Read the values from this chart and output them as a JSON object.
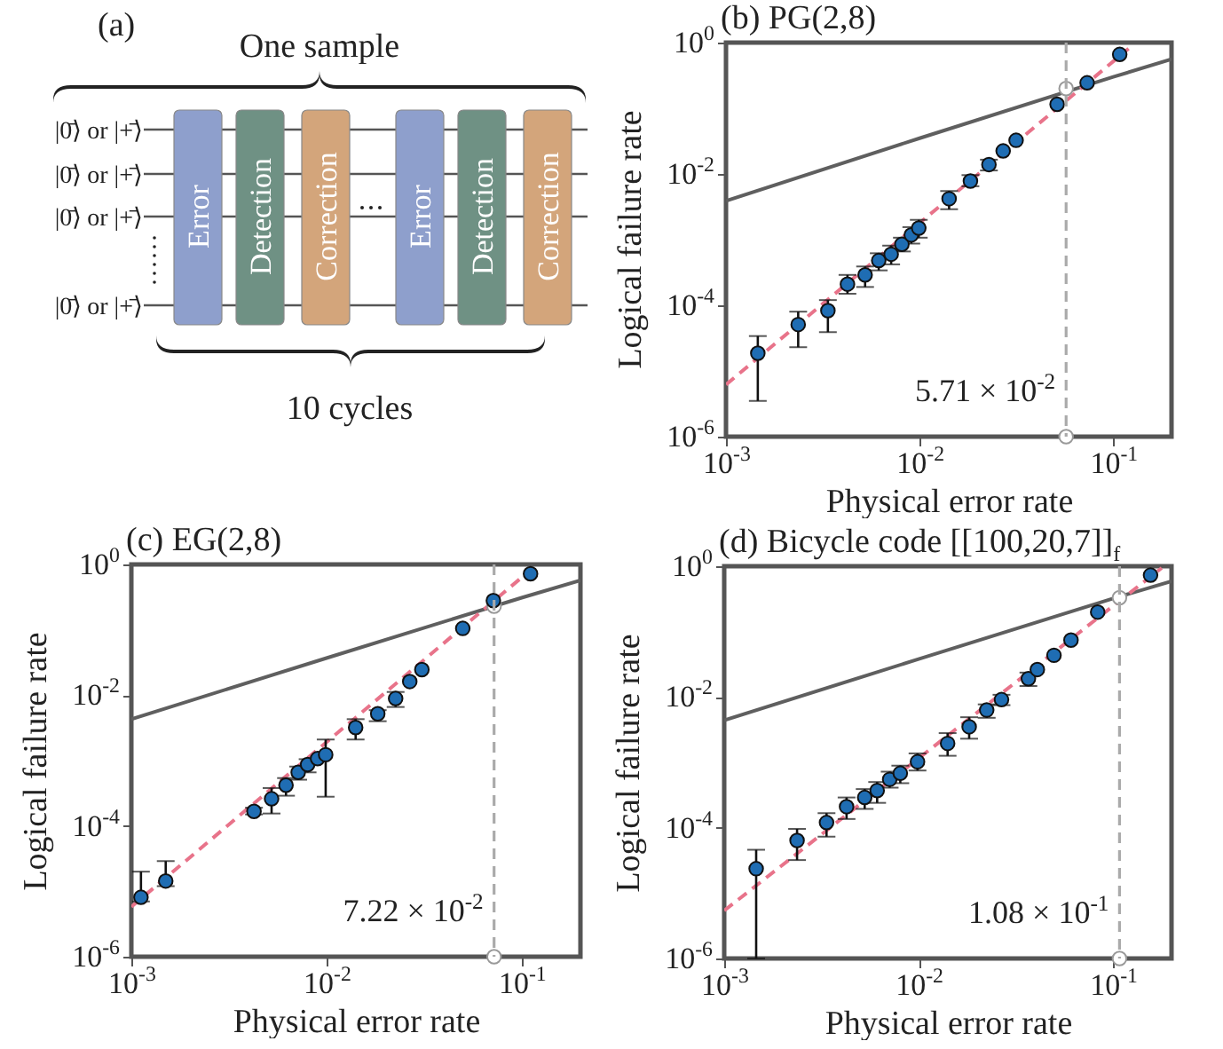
{
  "chart_data": [
    {
      "type": "other",
      "title": "(a)",
      "annotations": [
        "One sample",
        "|0̄⟩ or |+̄⟩",
        "|0̄⟩ or |+̄⟩",
        "|0̄⟩ or |+̄⟩",
        "|0̄⟩ or |+̄⟩",
        "Error",
        "Detection",
        "Correction",
        "Error",
        "Detection",
        "Correction",
        "10 cycles"
      ]
    },
    {
      "type": "scatter",
      "title": "(b) PG(2,8)",
      "xlabel": "Physical error rate",
      "ylabel": "Logical failure rate",
      "log": "xy",
      "marker": "circle",
      "grid": false,
      "xlim": [
        0.001,
        0.2
      ],
      "ylim": [
        1e-06,
        1
      ],
      "xticks": [
        {
          "value": 0.001,
          "label": "10$^{-3}$"
        },
        {
          "value": 0.01,
          "label": "10$^{-2}$"
        },
        {
          "value": 0.1,
          "label": "10$^{-1}$"
        }
      ],
      "yticks": [
        {
          "value": 1e-06,
          "label": "10$^{-6}$"
        },
        {
          "value": 0.0001,
          "label": "10$^{-4}$"
        },
        {
          "value": 0.01,
          "label": "10$^{-2}$"
        },
        {
          "value": 1,
          "label": "10$^{0}$"
        }
      ],
      "ref_lines": [
        {
          "axis": "x",
          "value": 0.0571,
          "label": "5.71 × 10$^{-2}$",
          "color": "#aaaaaa",
          "line_style": "dashed"
        }
      ],
      "series": [
        {
          "type": "line",
          "marker": "none",
          "color": "#5f5f5f",
          "x": [
            0.001,
            0.01,
            0.1,
            0.2
          ],
          "values": [
            0.0039,
            0.035,
            0.3,
            0.56
          ]
        },
        {
          "type": "line",
          "marker": "none",
          "color": "#e8738a",
          "line_style": "dashed",
          "x": [
            0.001,
            0.12
          ],
          "values": [
            6.2e-06,
            0.81
          ]
        },
        {
          "type": "scatter",
          "color": "#1f6db3",
          "x": [
            0.00146,
            0.00236,
            0.00336,
            0.00424,
            0.00523,
            0.00615,
            0.00713,
            0.0081,
            0.00906,
            0.0099,
            0.0142,
            0.0183,
            0.0228,
            0.027,
            0.0315,
            0.0513,
            0.0733,
            0.108
          ],
          "values": [
            1.86e-05,
            5.1e-05,
            8.3e-05,
            0.00021,
            0.00029,
            0.00048,
            0.0006,
            0.00085,
            0.00118,
            0.0015,
            0.0042,
            0.0078,
            0.0139,
            0.0224,
            0.0325,
            0.115,
            0.244,
            0.66
          ],
          "errors": [
            [
              3.5e-06,
              3.4e-05
            ],
            [
              2.3e-05,
              8e-05
            ],
            [
              3.9e-05,
              0.00012
            ],
            [
              0.00015,
              0.00029
            ],
            [
              0.00019,
              0.00039
            ],
            [
              0.00034,
              0.00062
            ],
            [
              0.00042,
              0.00081
            ],
            [
              0.00066,
              0.00107
            ],
            [
              0.00087,
              0.00155
            ],
            [
              0.00107,
              0.002
            ],
            [
              0.0029,
              0.0055
            ],
            [
              0.0065,
              0.0096
            ],
            [
              0.0113,
              0.0165
            ],
            null,
            null,
            null,
            null,
            null
          ]
        },
        {
          "type": "scatter",
          "color": "#ffffff",
          "x": [
            0.0571,
            0.0571
          ],
          "values": [
            0.2,
            1e-06
          ]
        }
      ]
    },
    {
      "type": "scatter",
      "title": "(c) EG(2,8)",
      "xlabel": "Physical error rate",
      "ylabel": "Logical failure rate",
      "log": "xy",
      "marker": "circle",
      "grid": false,
      "xlim": [
        0.001,
        0.2
      ],
      "ylim": [
        1e-06,
        1
      ],
      "xticks": [
        {
          "value": 0.001,
          "label": "10$^{-3}$"
        },
        {
          "value": 0.01,
          "label": "10$^{-2}$"
        },
        {
          "value": 0.1,
          "label": "10$^{-1}$"
        }
      ],
      "yticks": [
        {
          "value": 1e-06,
          "label": "10$^{-6}$"
        },
        {
          "value": 0.0001,
          "label": "10$^{-4}$"
        },
        {
          "value": 0.01,
          "label": "10$^{-2}$"
        },
        {
          "value": 1,
          "label": "10$^{0}$"
        }
      ],
      "ref_lines": [
        {
          "axis": "x",
          "value": 0.0722,
          "label": "7.22 × 10$^{-2}$",
          "color": "#aaaaaa",
          "line_style": "dashed"
        }
      ],
      "series": [
        {
          "type": "line",
          "marker": "none",
          "color": "#5f5f5f",
          "x": [
            0.001,
            0.01,
            0.1,
            0.2
          ],
          "values": [
            0.0043,
            0.037,
            0.31,
            0.57
          ]
        },
        {
          "type": "line",
          "marker": "none",
          "color": "#e8738a",
          "line_style": "dashed",
          "x": [
            0.001,
            0.12
          ],
          "values": [
            5.8e-06,
            1
          ]
        },
        {
          "type": "scatter",
          "color": "#ffffff",
          "x": [
            0.0722,
            0.0722
          ],
          "values": [
            0.23,
            1e-06
          ]
        },
        {
          "type": "scatter",
          "color": "#1f6db3",
          "x": [
            0.00112,
            0.0015,
            0.00425,
            0.00523,
            0.0062,
            0.00716,
            0.008,
            0.009,
            0.0099,
            0.0141,
            0.0183,
            0.0226,
            0.0267,
            0.0308,
            0.0499,
            0.0716,
            0.111
          ],
          "values": [
            8.1e-06,
            1.44e-05,
            0.000167,
            0.00026,
            0.00042,
            0.00066,
            0.00087,
            0.00107,
            0.00123,
            0.0032,
            0.0052,
            0.0089,
            0.0162,
            0.0246,
            0.105,
            0.28,
            0.72
          ],
          "errors": [
            [
              7e-06,
              2e-05
            ],
            [
              1.2e-05,
              2.9e-05
            ],
            [
              0.00015,
              0.00019
            ],
            [
              0.000155,
              0.00038
            ],
            [
              0.00029,
              0.00054
            ],
            [
              0.00051,
              0.00081
            ],
            [
              0.00066,
              0.00105
            ],
            null,
            [
              0.00028,
              0.0021
            ],
            [
              0.0021,
              0.0043
            ],
            [
              0.004,
              0.0059
            ],
            [
              0.0066,
              0.0112
            ],
            null,
            null,
            null,
            null,
            null
          ]
        }
      ]
    },
    {
      "type": "scatter",
      "title": "(d) Bicycle code [[100,20,7]]$_{f}$",
      "xlabel": "Physical error rate",
      "ylabel": "Logical failure rate",
      "log": "xy",
      "marker": "circle",
      "grid": false,
      "xlim": [
        0.001,
        0.2
      ],
      "ylim": [
        1e-06,
        1
      ],
      "xticks": [
        {
          "value": 0.001,
          "label": "10$^{-3}$"
        },
        {
          "value": 0.01,
          "label": "10$^{-2}$"
        },
        {
          "value": 0.1,
          "label": "10$^{-1}$"
        }
      ],
      "yticks": [
        {
          "value": 1e-06,
          "label": "10$^{-6}$"
        },
        {
          "value": 0.0001,
          "label": "10$^{-4}$"
        },
        {
          "value": 0.01,
          "label": "10$^{-2}$"
        },
        {
          "value": 1,
          "label": "10$^{0}$"
        }
      ],
      "ref_lines": [
        {
          "axis": "x",
          "value": 0.108,
          "label": "1.08 × 10$^{-1}$",
          "color": "#aaaaaa",
          "line_style": "dashed"
        }
      ],
      "series": [
        {
          "type": "line",
          "marker": "none",
          "color": "#5f5f5f",
          "x": [
            0.001,
            0.01,
            0.1,
            0.2
          ],
          "values": [
            0.0044,
            0.038,
            0.32,
            0.59
          ]
        },
        {
          "type": "line",
          "marker": "none",
          "color": "#e8738a",
          "line_style": "dashed",
          "x": [
            0.001,
            0.178
          ],
          "values": [
            5.4e-06,
            0.94
          ]
        },
        {
          "type": "scatter",
          "color": "#1f6db3",
          "x": [
            0.00146,
            0.00237,
            0.00336,
            0.00426,
            0.00528,
            0.00612,
            0.0071,
            0.00805,
            0.00987,
            0.0141,
            0.0182,
            0.0224,
            0.0267,
            0.0367,
            0.0408,
            0.0497,
            0.0608,
            0.0834,
            0.156
          ],
          "values": [
            2.36e-05,
            6.4e-05,
            0.00012,
            0.00021,
            0.00029,
            0.00037,
            0.00055,
            0.00068,
            0.00102,
            0.00195,
            0.0035,
            0.0063,
            0.0091,
            0.019,
            0.0263,
            0.0434,
            0.0741,
            0.199,
            0.73
          ],
          "errors": [
            [
              1e-06,
              4.6e-05
            ],
            [
              3.2e-05,
              9.6e-05
            ],
            [
              7.3e-05,
              0.000167
            ],
            [
              0.000136,
              0.00029
            ],
            [
              0.000194,
              0.00039
            ],
            [
              0.00024,
              0.0005
            ],
            [
              0.00041,
              0.00072
            ],
            [
              0.00048,
              0.00089
            ],
            [
              0.00075,
              0.00137
            ],
            [
              0.00126,
              0.0028
            ],
            [
              0.0023,
              0.0049
            ],
            [
              0.0048,
              0.0077
            ],
            [
              0.0075,
              0.0108
            ],
            [
              0.0147,
              0.0236
            ],
            null,
            null,
            null,
            null,
            null
          ]
        },
        {
          "type": "scatter",
          "color": "#ffffff",
          "x": [
            0.108,
            0.108
          ],
          "values": [
            0.33,
            1e-06
          ]
        }
      ]
    }
  ]
}
